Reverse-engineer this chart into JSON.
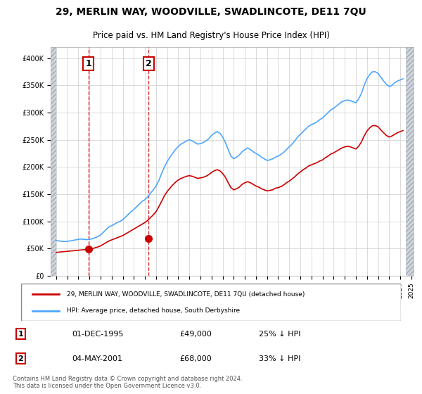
{
  "title": "29, MERLIN WAY, WOODVILLE, SWADLINCOTE, DE11 7QU",
  "subtitle": "Price paid vs. HM Land Registry's House Price Index (HPI)",
  "sale1_date": "1995-12-01",
  "sale1_price": 49000,
  "sale1_label": "1",
  "sale2_date": "2001-05-04",
  "sale2_price": 68000,
  "sale2_label": "2",
  "legend_line1": "29, MERLIN WAY, WOODVILLE, SWADLINCOTE, DE11 7QU (detached house)",
  "legend_line2": "HPI: Average price, detached house, South Derbyshire",
  "table_row1": [
    "1",
    "01-DEC-1995",
    "£49,000",
    "25% ↓ HPI"
  ],
  "table_row2": [
    "2",
    "04-MAY-2001",
    "£68,000",
    "33% ↓ HPI"
  ],
  "footnote": "Contains HM Land Registry data © Crown copyright and database right 2024.\nThis data is licensed under the Open Government Licence v3.0.",
  "hpi_color": "#4da6ff",
  "price_color": "#cc0000",
  "marker_color": "#cc0000",
  "vline_color": "#cc0000",
  "hatched_bg_color": "#d0d8e8",
  "grid_color": "#cccccc",
  "ylim": [
    0,
    420000
  ],
  "yticks": [
    0,
    50000,
    100000,
    150000,
    200000,
    250000,
    300000,
    350000,
    400000
  ],
  "hpi_data": {
    "dates": [
      1993.0,
      1993.25,
      1993.5,
      1993.75,
      1994.0,
      1994.25,
      1994.5,
      1994.75,
      1995.0,
      1995.25,
      1995.5,
      1995.75,
      1996.0,
      1996.25,
      1996.5,
      1996.75,
      1997.0,
      1997.25,
      1997.5,
      1997.75,
      1998.0,
      1998.25,
      1998.5,
      1998.75,
      1999.0,
      1999.25,
      1999.5,
      1999.75,
      2000.0,
      2000.25,
      2000.5,
      2000.75,
      2001.0,
      2001.25,
      2001.5,
      2001.75,
      2002.0,
      2002.25,
      2002.5,
      2002.75,
      2003.0,
      2003.25,
      2003.5,
      2003.75,
      2004.0,
      2004.25,
      2004.5,
      2004.75,
      2005.0,
      2005.25,
      2005.5,
      2005.75,
      2006.0,
      2006.25,
      2006.5,
      2006.75,
      2007.0,
      2007.25,
      2007.5,
      2007.75,
      2008.0,
      2008.25,
      2008.5,
      2008.75,
      2009.0,
      2009.25,
      2009.5,
      2009.75,
      2010.0,
      2010.25,
      2010.5,
      2010.75,
      2011.0,
      2011.25,
      2011.5,
      2011.75,
      2012.0,
      2012.25,
      2012.5,
      2012.75,
      2013.0,
      2013.25,
      2013.5,
      2013.75,
      2014.0,
      2014.25,
      2014.5,
      2014.75,
      2015.0,
      2015.25,
      2015.5,
      2015.75,
      2016.0,
      2016.25,
      2016.5,
      2016.75,
      2017.0,
      2017.25,
      2017.5,
      2017.75,
      2018.0,
      2018.25,
      2018.5,
      2018.75,
      2019.0,
      2019.25,
      2019.5,
      2019.75,
      2020.0,
      2020.25,
      2020.5,
      2020.75,
      2021.0,
      2021.25,
      2021.5,
      2021.75,
      2022.0,
      2022.25,
      2022.5,
      2022.75,
      2023.0,
      2023.25,
      2023.5,
      2023.75,
      2024.0,
      2024.25
    ],
    "values": [
      65000,
      64000,
      63500,
      63000,
      63500,
      64000,
      65000,
      66000,
      67000,
      67500,
      67000,
      66500,
      67000,
      68000,
      70000,
      72000,
      75000,
      80000,
      85000,
      90000,
      92000,
      95000,
      98000,
      100000,
      103000,
      108000,
      113000,
      118000,
      122000,
      127000,
      132000,
      137000,
      140000,
      145000,
      152000,
      158000,
      165000,
      175000,
      188000,
      200000,
      210000,
      218000,
      225000,
      232000,
      238000,
      242000,
      245000,
      248000,
      250000,
      248000,
      245000,
      242000,
      243000,
      245000,
      248000,
      252000,
      258000,
      262000,
      265000,
      262000,
      255000,
      245000,
      232000,
      220000,
      215000,
      218000,
      222000,
      228000,
      232000,
      235000,
      232000,
      228000,
      225000,
      222000,
      218000,
      215000,
      212000,
      213000,
      215000,
      218000,
      220000,
      223000,
      227000,
      232000,
      237000,
      242000,
      248000,
      255000,
      260000,
      265000,
      270000,
      275000,
      278000,
      280000,
      283000,
      287000,
      290000,
      295000,
      300000,
      305000,
      308000,
      312000,
      316000,
      320000,
      322000,
      323000,
      322000,
      320000,
      318000,
      325000,
      335000,
      350000,
      362000,
      370000,
      375000,
      375000,
      372000,
      365000,
      358000,
      352000,
      348000,
      350000,
      355000,
      358000,
      360000,
      362000
    ]
  },
  "price_data": {
    "dates": [
      1993.0,
      1993.25,
      1993.5,
      1993.75,
      1994.0,
      1994.25,
      1994.5,
      1994.75,
      1995.0,
      1995.25,
      1995.5,
      1995.75,
      1996.0,
      1996.25,
      1996.5,
      1996.75,
      1997.0,
      1997.25,
      1997.5,
      1997.75,
      1998.0,
      1998.25,
      1998.5,
      1998.75,
      1999.0,
      1999.25,
      1999.5,
      1999.75,
      2000.0,
      2000.25,
      2000.5,
      2000.75,
      2001.0,
      2001.25,
      2001.5,
      2001.75,
      2002.0,
      2002.25,
      2002.5,
      2002.75,
      2003.0,
      2003.25,
      2003.5,
      2003.75,
      2004.0,
      2004.25,
      2004.5,
      2004.75,
      2005.0,
      2005.25,
      2005.5,
      2005.75,
      2006.0,
      2006.25,
      2006.5,
      2006.75,
      2007.0,
      2007.25,
      2007.5,
      2007.75,
      2008.0,
      2008.25,
      2008.5,
      2008.75,
      2009.0,
      2009.25,
      2009.5,
      2009.75,
      2010.0,
      2010.25,
      2010.5,
      2010.75,
      2011.0,
      2011.25,
      2011.5,
      2011.75,
      2012.0,
      2012.25,
      2012.5,
      2012.75,
      2013.0,
      2013.25,
      2013.5,
      2013.75,
      2014.0,
      2014.25,
      2014.5,
      2014.75,
      2015.0,
      2015.25,
      2015.5,
      2015.75,
      2016.0,
      2016.25,
      2016.5,
      2016.75,
      2017.0,
      2017.25,
      2017.5,
      2017.75,
      2018.0,
      2018.25,
      2018.5,
      2018.75,
      2019.0,
      2019.25,
      2019.5,
      2019.75,
      2020.0,
      2020.25,
      2020.5,
      2020.75,
      2021.0,
      2021.25,
      2021.5,
      2021.75,
      2022.0,
      2022.25,
      2022.5,
      2022.75,
      2023.0,
      2023.25,
      2023.5,
      2023.75,
      2024.0,
      2024.25
    ],
    "values": [
      43000,
      43500,
      44000,
      44500,
      45000,
      45500,
      46000,
      46500,
      47000,
      47500,
      48000,
      48500,
      49000,
      50000,
      51500,
      53000,
      55000,
      58000,
      61000,
      64000,
      66000,
      68000,
      70000,
      72000,
      74000,
      77000,
      80000,
      83000,
      86000,
      89000,
      92000,
      95000,
      98000,
      102000,
      107000,
      112000,
      118000,
      127000,
      137000,
      147000,
      155000,
      161000,
      167000,
      172000,
      176000,
      179000,
      181000,
      183000,
      184000,
      183000,
      181000,
      179000,
      180000,
      181000,
      183000,
      186000,
      190000,
      193000,
      195000,
      193000,
      188000,
      181000,
      171000,
      162000,
      158000,
      160000,
      163000,
      168000,
      171000,
      173000,
      171000,
      168000,
      165000,
      163000,
      160000,
      158000,
      156000,
      157000,
      158000,
      161000,
      162000,
      164000,
      167000,
      171000,
      174000,
      178000,
      182000,
      187000,
      191000,
      195000,
      198000,
      202000,
      204000,
      206000,
      208000,
      211000,
      213000,
      217000,
      220000,
      224000,
      226000,
      229000,
      232000,
      235000,
      237000,
      238000,
      237000,
      235000,
      233000,
      238000,
      246000,
      257000,
      266000,
      272000,
      276000,
      276000,
      274000,
      268000,
      263000,
      258000,
      255000,
      257000,
      260000,
      263000,
      265000,
      267000
    ]
  }
}
